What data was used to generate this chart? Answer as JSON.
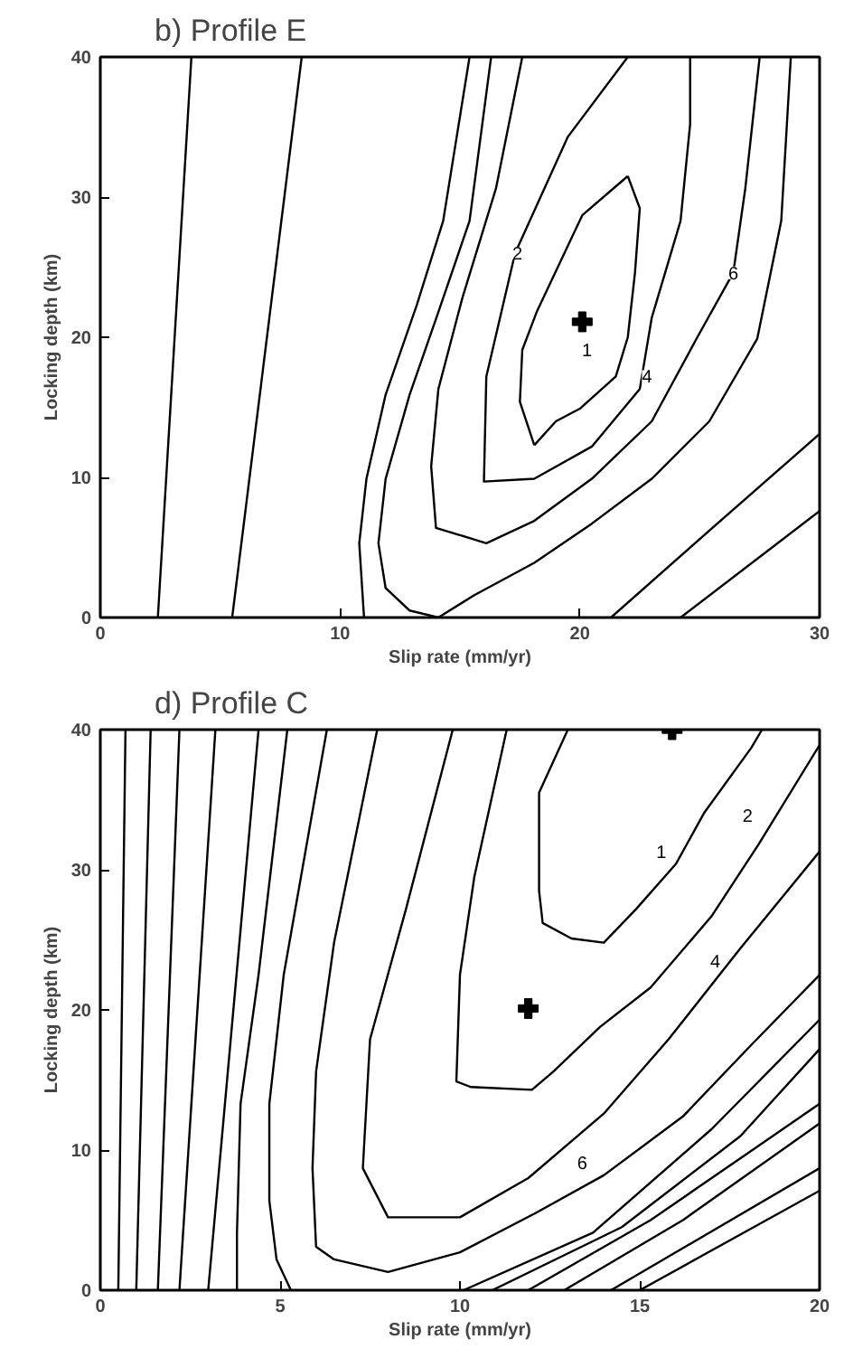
{
  "chart_data": [
    {
      "type": "line",
      "title": "b) Profile E",
      "xlabel": "Slip rate (mm/yr)",
      "ylabel": "Locking depth (km)",
      "xlim": [
        0,
        30
      ],
      "ylim": [
        0,
        40
      ],
      "xticks": [
        0,
        10,
        20,
        30
      ],
      "yticks": [
        0,
        10,
        20,
        30,
        40
      ],
      "series": [
        {
          "color": "#000000",
          "x": [
            2.4,
            3.8
          ],
          "values": [
            0,
            40
          ]
        },
        {
          "color": "#000000",
          "x": [
            5.5,
            8.4
          ],
          "values": [
            0,
            40
          ]
        },
        {
          "color": "#000000",
          "x": [
            11.0,
            10.8,
            11.1,
            11.9,
            13.2,
            14.3,
            15.4
          ],
          "values": [
            0,
            5.3,
            9.9,
            15.9,
            22.3,
            28.3,
            40
          ]
        },
        {
          "color": "#000000",
          "x": [
            16.3,
            15.4,
            14.1,
            12.9,
            11.9,
            11.6,
            11.9,
            12.9,
            14.1,
            15.6,
            18.1,
            20.5,
            23.0,
            25.4,
            27.4,
            28.4,
            28.8
          ],
          "values": [
            40,
            28.3,
            21.8,
            15.9,
            9.9,
            5.3,
            2.1,
            0.5,
            0,
            1.6,
            3.9,
            6.7,
            9.9,
            14.0,
            19.9,
            28.3,
            40
          ]
        },
        {
          "color": "#000000",
          "x": [
            17.6,
            16.5,
            15.1,
            14.1,
            13.8,
            14.0,
            16.1,
            18.1,
            20.5,
            23.0,
            24.9,
            26.4,
            26.9,
            27.5
          ],
          "values": [
            40,
            30.6,
            22.8,
            16.3,
            10.8,
            6.4,
            5.3,
            6.9,
            9.9,
            14.0,
            20.0,
            24.6,
            30.6,
            40
          ]
        },
        {
          "color": "#000000",
          "x": [
            22.0,
            19.5,
            17.3,
            16.1,
            16.0,
            18.1,
            20.5,
            22.5,
            23.0,
            24.2,
            24.6,
            24.6
          ],
          "values": [
            40,
            34.3,
            26.0,
            17.2,
            9.7,
            9.9,
            12.2,
            16.3,
            21.4,
            28.3,
            35.2,
            40
          ]
        },
        {
          "color": "#000000",
          "x": [
            22.0,
            22.5,
            22.3,
            22.0,
            21.5,
            20.0,
            19.0,
            18.1
          ],
          "values": [
            31.5,
            29.2,
            24.6,
            20.0,
            17.2,
            14.9,
            14.0,
            12.3
          ]
        },
        {
          "color": "#000000",
          "x": [
            18.1,
            17.5,
            17.6,
            18.2,
            20.1,
            22.0
          ],
          "values": [
            12.3,
            15.4,
            19.1,
            21.8,
            28.7,
            31.5
          ]
        },
        {
          "color": "#000000",
          "x": [
            21.3,
            25.4,
            30
          ],
          "values": [
            0,
            6.2,
            13.1
          ]
        },
        {
          "color": "#000000",
          "x": [
            24.2,
            30
          ],
          "values": [
            0,
            7.6
          ]
        },
        {
          "type": "scatter",
          "marker": "cross",
          "color": "#000000",
          "x": [
            20.1
          ],
          "values": [
            21.1
          ]
        }
      ],
      "annotations": [
        {
          "text": "1",
          "x": 20.3,
          "y": 19.1
        },
        {
          "text": "2",
          "x": 17.4,
          "y": 26.0
        },
        {
          "text": "4",
          "x": 22.8,
          "y": 17.2
        },
        {
          "text": "6",
          "x": 26.4,
          "y": 24.6
        }
      ]
    },
    {
      "type": "line",
      "title": "d) Profile C",
      "xlabel": "Slip rate (mm/yr)",
      "ylabel": "Locking depth (km)",
      "xlim": [
        0,
        20
      ],
      "ylim": [
        0,
        40
      ],
      "xticks": [
        0,
        5,
        10,
        15,
        20
      ],
      "yticks": [
        0,
        10,
        20,
        30,
        40
      ],
      "series": [
        {
          "color": "#000000",
          "x": [
            0.5,
            0.7
          ],
          "values": [
            0,
            40
          ]
        },
        {
          "color": "#000000",
          "x": [
            1.0,
            1.4
          ],
          "values": [
            0,
            40
          ]
        },
        {
          "color": "#000000",
          "x": [
            1.6,
            2.2
          ],
          "values": [
            0,
            40
          ]
        },
        {
          "color": "#000000",
          "x": [
            2.2,
            3.2
          ],
          "values": [
            0,
            40
          ]
        },
        {
          "color": "#000000",
          "x": [
            3.0,
            4.4
          ],
          "values": [
            0,
            40
          ]
        },
        {
          "color": "#000000",
          "x": [
            3.8,
            3.8,
            3.9,
            4.4,
            5.2
          ],
          "values": [
            0,
            4.1,
            13.3,
            22.5,
            40
          ]
        },
        {
          "color": "#000000",
          "x": [
            5.3,
            4.9,
            4.7,
            4.7,
            5.1,
            6.3
          ],
          "values": [
            0,
            2.2,
            6.4,
            13.3,
            22.5,
            40
          ]
        },
        {
          "color": "#000000",
          "x": [
            7.7,
            6.5,
            6.0,
            5.9,
            6.0,
            6.5,
            8.0,
            10.0,
            12.1,
            14.0,
            16.2,
            18.1,
            20
          ],
          "values": [
            40,
            24.8,
            15.6,
            8.7,
            3.1,
            2.2,
            1.3,
            2.7,
            5.5,
            8.2,
            12.4,
            17.5,
            22.5
          ]
        },
        {
          "color": "#000000",
          "x": [
            9.8,
            8.5,
            7.5,
            7.3,
            8.0,
            10.0,
            11.9,
            14.0,
            15.8,
            17.8,
            20
          ],
          "values": [
            40,
            27.2,
            17.9,
            8.7,
            5.2,
            5.2,
            8.0,
            12.6,
            17.9,
            24.4,
            31.3
          ]
        },
        {
          "color": "#000000",
          "x": [
            11.3,
            10.4,
            10.0,
            9.9,
            10.3,
            12.0,
            12.6,
            13.9,
            15.3,
            17.0,
            18.3,
            20
          ],
          "values": [
            40,
            29.5,
            22.5,
            14.9,
            14.5,
            14.3,
            15.6,
            18.8,
            21.6,
            26.7,
            31.8,
            38.9
          ]
        },
        {
          "color": "#000000",
          "x": [
            13.0,
            12.2,
            12.2,
            12.3,
            13.1,
            14.0,
            14.9,
            16.0,
            16.8,
            18.1,
            18.4
          ],
          "values": [
            40,
            35.5,
            28.5,
            26.2,
            25.1,
            24.8,
            27.2,
            30.4,
            34.1,
            38.7,
            40
          ]
        },
        {
          "color": "#000000",
          "x": [
            10.1,
            13.7,
            17.0,
            20
          ],
          "values": [
            0,
            4.1,
            11.5,
            19.3
          ]
        },
        {
          "color": "#000000",
          "x": [
            10.9,
            14.5,
            17.8,
            20
          ],
          "values": [
            0,
            4.5,
            11.0,
            17.2
          ]
        },
        {
          "color": "#000000",
          "x": [
            11.9,
            15.3,
            20
          ],
          "values": [
            0,
            5.0,
            13.3
          ]
        },
        {
          "color": "#000000",
          "x": [
            12.9,
            16.2,
            20
          ],
          "values": [
            0,
            5.0,
            11.9
          ]
        },
        {
          "color": "#000000",
          "x": [
            14.2,
            20
          ],
          "values": [
            0,
            8.7
          ]
        },
        {
          "color": "#000000",
          "x": [
            15.0,
            20
          ],
          "values": [
            0,
            7.1
          ]
        },
        {
          "type": "scatter",
          "marker": "cross",
          "color": "#000000",
          "x": [
            11.9,
            15.9
          ],
          "values": [
            20.1,
            40
          ]
        }
      ],
      "annotations": [
        {
          "text": "1",
          "x": 15.6,
          "y": 31.3
        },
        {
          "text": "2",
          "x": 18.0,
          "y": 33.9
        },
        {
          "text": "4",
          "x": 17.1,
          "y": 23.5
        },
        {
          "text": "6",
          "x": 13.4,
          "y": 9.1
        }
      ]
    }
  ]
}
